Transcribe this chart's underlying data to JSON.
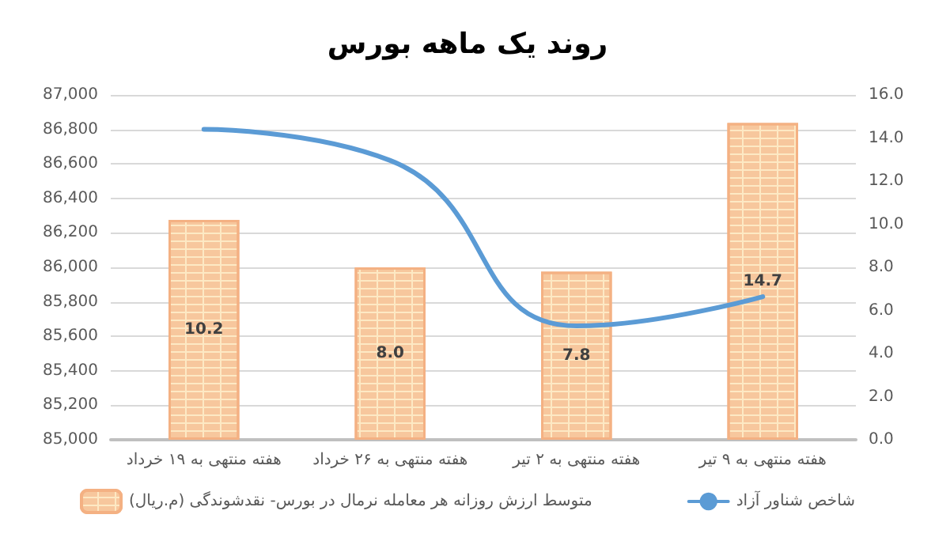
{
  "chart_data": {
    "type": "bar",
    "title": "روند یک ماهه بورس",
    "categories": [
      "هفته منتهی به ۱۹ خرداد",
      "هفته منتهی به ۲۶ خرداد",
      "هفته منتهی به ۲ تیر",
      "هفته منتهی به ۹ تیر"
    ],
    "series": [
      {
        "name": "متوسط ارزش روزانه هر معامله نرمال در بورس- نقدشوندگی (م.ریال)",
        "axis": "y2",
        "color": "#fde9c4",
        "values": [
          10.2,
          8.0,
          7.8,
          14.7
        ],
        "value_labels": [
          "10.2",
          "8.0",
          "7.8",
          "14.7"
        ]
      },
      {
        "name": "شاخص شناور آزاد",
        "type": "line",
        "color": "#5b9bd5",
        "values": [
          86800,
          86620,
          85660,
          85830
        ]
      }
    ],
    "ylim": [
      85000,
      87000
    ],
    "yticks": [
      {
        "value": 85000,
        "label": "85,000"
      },
      {
        "value": 85200,
        "label": "85,200"
      },
      {
        "value": 85400,
        "label": "85,400"
      },
      {
        "value": 85600,
        "label": "85,600"
      },
      {
        "value": 85800,
        "label": "85,800"
      },
      {
        "value": 86000,
        "label": "86,000"
      },
      {
        "value": 86200,
        "label": "86,200"
      },
      {
        "value": 86400,
        "label": "86,400"
      },
      {
        "value": 86600,
        "label": "86,600"
      },
      {
        "value": 86800,
        "label": "86,800"
      },
      {
        "value": 87000,
        "label": "87,000"
      }
    ],
    "y2lim": [
      0,
      16
    ],
    "y2ticks": [
      {
        "value": 0,
        "label": "0.0"
      },
      {
        "value": 2,
        "label": "2.0"
      },
      {
        "value": 4,
        "label": "4.0"
      },
      {
        "value": 6,
        "label": "6.0"
      },
      {
        "value": 8,
        "label": "8.0"
      },
      {
        "value": 10,
        "label": "10.0"
      },
      {
        "value": 12,
        "label": "12.0"
      },
      {
        "value": 14,
        "label": "14.0"
      },
      {
        "value": 16,
        "label": "16.0"
      }
    ],
    "grid": "y",
    "legend": "bottom",
    "marker": "none",
    "line_style": "solid"
  }
}
